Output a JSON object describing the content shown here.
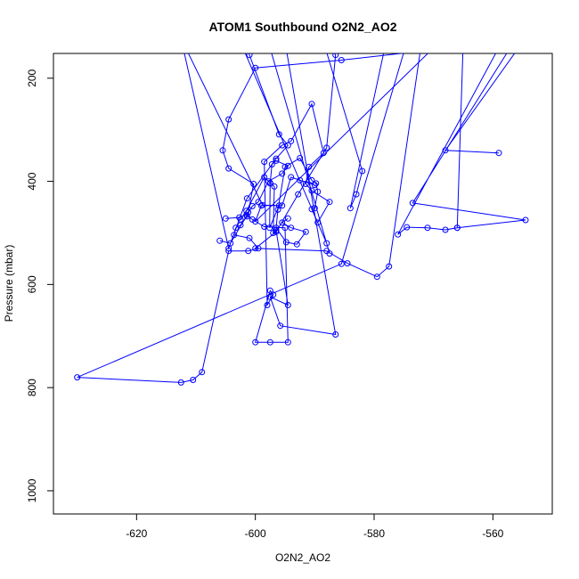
{
  "chart_data": {
    "type": "line",
    "title": "ATOM1 Southbound O2N2_AO2",
    "xlabel": "O2N2_AO2",
    "ylabel": "Pressure (mbar)",
    "xlim": [
      -634,
      -550
    ],
    "ylim": [
      1045,
      152
    ],
    "x_ticks": [
      -620,
      -600,
      -580,
      -560
    ],
    "y_ticks": [
      200,
      400,
      600,
      800,
      1000
    ],
    "series_color": "#0000ff",
    "grid": false,
    "series": [
      {
        "points": [
          [
            -569.5,
            130
          ],
          [
            -570,
            145
          ],
          [
            -585.5,
            165
          ],
          [
            -600,
            180
          ],
          [
            -604.5,
            280
          ],
          [
            -605.5,
            340
          ],
          [
            -604.5,
            375
          ],
          [
            -600.3,
            405
          ],
          [
            -601.2,
            460
          ],
          [
            -601.4,
            468
          ],
          [
            -602.5,
            485
          ],
          [
            -603.3,
            490
          ],
          [
            -603.6,
            504
          ],
          [
            -601,
            510
          ],
          [
            -599.5,
            530
          ],
          [
            -601.2,
            535
          ],
          [
            -604.5,
            535
          ],
          [
            -609,
            770
          ],
          [
            -610.5,
            785
          ],
          [
            -612.5,
            790
          ],
          [
            -630,
            780
          ],
          [
            -585.5,
            560
          ],
          [
            -575,
            150
          ],
          [
            -572,
            130
          ],
          [
            -577.5,
            565
          ],
          [
            -579.5,
            585
          ],
          [
            -584.5,
            559
          ],
          [
            -588,
            535
          ],
          [
            -600,
            530
          ],
          [
            -596.5,
            498
          ],
          [
            -592.8,
            425
          ],
          [
            -588,
            335
          ],
          [
            -586.5,
            155
          ],
          [
            -588,
            130
          ]
        ]
      },
      {
        "points": [
          [
            -618,
            130
          ],
          [
            -612,
            150
          ],
          [
            -604.5,
            530
          ],
          [
            -601.4,
            433
          ],
          [
            -596.5,
            356
          ],
          [
            -594.5,
            330
          ],
          [
            -596,
            309
          ],
          [
            -601,
            155
          ],
          [
            -602,
            130
          ]
        ]
      },
      {
        "points": [
          [
            -612.2,
            130
          ],
          [
            -598.8,
            446
          ],
          [
            -596,
            447
          ],
          [
            -597.6,
            490
          ],
          [
            -597.5,
            404
          ],
          [
            -597.2,
            367
          ],
          [
            -596.5,
            360
          ],
          [
            -594.5,
            370
          ],
          [
            -595.5,
            385
          ],
          [
            -597.8,
            400
          ],
          [
            -599.5,
            440
          ],
          [
            -600.5,
            448
          ],
          [
            -604.2,
            520
          ],
          [
            -606,
            515
          ]
        ]
      },
      {
        "points": [
          [
            -602.5,
            130
          ],
          [
            -589.5,
            480
          ],
          [
            -587.5,
            440
          ],
          [
            -590.5,
            418
          ],
          [
            -591.5,
            405
          ],
          [
            -591,
            372
          ],
          [
            -588.5,
            345
          ],
          [
            -590.5,
            250
          ],
          [
            -594,
            322
          ],
          [
            -595.5,
            330
          ],
          [
            -598.5,
            362
          ],
          [
            -598,
            640
          ],
          [
            -597,
            620
          ],
          [
            -597.5,
            612
          ],
          [
            -600,
            712
          ],
          [
            -597.5,
            712
          ],
          [
            -594.5,
            712
          ],
          [
            -595,
            490
          ],
          [
            -598.5,
            488
          ],
          [
            -600.5,
            474
          ],
          [
            -601.5,
            465
          ],
          [
            -602.7,
            470
          ],
          [
            -605,
            472
          ]
        ]
      },
      {
        "points": [
          [
            -597.8,
            130
          ],
          [
            -587.5,
            540
          ],
          [
            -588,
            520
          ],
          [
            -590.5,
            454
          ],
          [
            -590,
            452
          ],
          [
            -589.5,
            420
          ],
          [
            -589.8,
            404
          ],
          [
            -590.5,
            398
          ],
          [
            -592.5,
            355
          ],
          [
            -595,
            372
          ],
          [
            -596.2,
            455
          ],
          [
            -596.5,
            490
          ],
          [
            -594.8,
            518
          ],
          [
            -593,
            522
          ],
          [
            -591.5,
            498
          ],
          [
            -594,
            490
          ],
          [
            -595.5,
            480
          ],
          [
            -594.5,
            472
          ]
        ]
      },
      {
        "points": [
          [
            -595,
            130
          ],
          [
            -586.5,
            697
          ],
          [
            -595.8,
            680
          ],
          [
            -597.5,
            624
          ],
          [
            -594.5,
            640
          ],
          [
            -596.5,
            495
          ],
          [
            -597,
            500
          ],
          [
            -596.8,
            410
          ],
          [
            -597.5,
            403
          ],
          [
            -598.5,
            392
          ],
          [
            -601.5,
            457
          ],
          [
            -602.5,
            474
          ]
        ]
      },
      {
        "points": [
          [
            -578,
            130
          ],
          [
            -584,
            452
          ],
          [
            -583,
            425
          ],
          [
            -582,
            380
          ],
          [
            -588.5,
            130
          ]
        ]
      },
      {
        "points": [
          [
            -555,
            130
          ],
          [
            -568,
            340
          ],
          [
            -559,
            345
          ]
        ]
      },
      {
        "points": [
          [
            -556.5,
            130
          ],
          [
            -573.5,
            442
          ],
          [
            -554.5,
            475
          ],
          [
            -566,
            490
          ],
          [
            -568,
            494
          ],
          [
            -571,
            490
          ],
          [
            -574.5,
            489
          ],
          [
            -576,
            503
          ],
          [
            -558.5,
            130
          ]
        ]
      },
      {
        "points": [
          [
            -565,
            130
          ],
          [
            -566,
            490
          ]
        ]
      },
      {
        "points": [
          [
            -569,
            130
          ],
          [
            -600,
            478
          ],
          [
            -599,
            447
          ],
          [
            -595.5,
            447
          ],
          [
            -594,
            392
          ],
          [
            -592.5,
            398
          ],
          [
            -590,
            407
          ]
        ]
      }
    ],
    "marker": "open-circle"
  }
}
